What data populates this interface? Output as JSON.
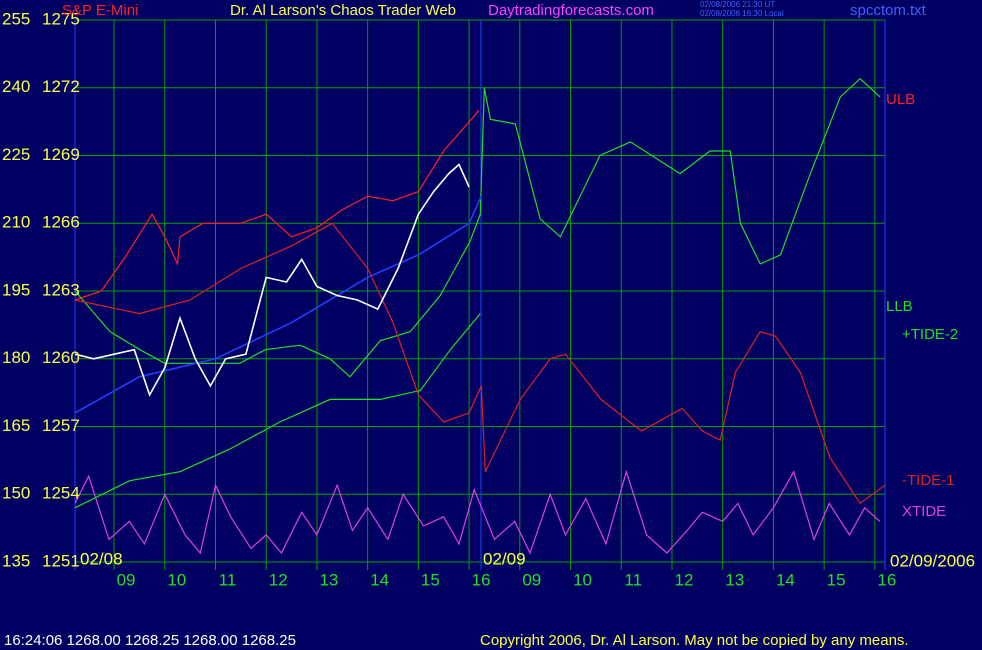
{
  "chart_data": {
    "type": "line",
    "title": "Dr. Al Larson's Chaos Trader Web",
    "instrument": "S&P E-Mini",
    "website": "Daytradingforecasts.com",
    "timestamps": [
      "02/08/2006 21:30 UT",
      "02/08/2006 16:30 Local"
    ],
    "file": "spcctom.txt",
    "date_labels": [
      "02/08",
      "02/09",
      "02/09/2006"
    ],
    "status": "16:24:06  1268.00 1268.25 1268.00 1268.25",
    "copyright": "Copyright 2006, Dr. Al Larson. May not be copied by any means.",
    "grid": true,
    "xlim": [
      8.23,
      24.2
    ],
    "xticks": [
      {
        "value": 9,
        "label": "09"
      },
      10,
      11,
      12,
      13,
      14,
      15,
      16,
      {
        "value": 17,
        "label": "09"
      },
      {
        "value": 18,
        "label": "10"
      },
      {
        "value": 19,
        "label": "11"
      },
      {
        "value": 20,
        "label": "12"
      },
      {
        "value": 21,
        "label": "13"
      },
      {
        "value": 22,
        "label": "14"
      },
      {
        "value": 23,
        "label": "15"
      },
      {
        "value": 24,
        "label": "16"
      }
    ],
    "ylim": [
      135,
      255
    ],
    "yticks": [
      135,
      150,
      165,
      180,
      195,
      210,
      225,
      240,
      255
    ],
    "y2lim": [
      1251,
      1275
    ],
    "y2ticks": [
      1251,
      1254,
      1257,
      1260,
      1263,
      1266,
      1269,
      1272,
      1275
    ],
    "series": [
      {
        "name": "ULB",
        "color": "#ff2020",
        "x": [
          8.23,
          8.75,
          9.25,
          9.75,
          10.0,
          10.25,
          10.3,
          10.75,
          11.5,
          12.0,
          12.5,
          13.0,
          13.5,
          14.0,
          14.5,
          15.0,
          15.5,
          16.2
        ],
        "values": [
          193,
          195,
          203,
          212,
          207,
          201,
          207,
          210,
          210,
          212,
          207,
          209,
          213,
          216,
          215,
          217,
          226,
          235
        ]
      },
      {
        "name": "LLB",
        "color": "#20e020",
        "x": [
          8.23,
          9.31,
          10.3,
          11.28,
          12.27,
          13.26,
          14.25,
          15.04,
          15.63,
          16.22
        ],
        "values": [
          147,
          153,
          155,
          160,
          166,
          171,
          171,
          173,
          182,
          190
        ]
      },
      {
        "name": "+TIDE-2",
        "color": "#20e020",
        "x": [
          8.23,
          8.92,
          9.51,
          10.0,
          10.7,
          11.48,
          11.98,
          12.67,
          13.26,
          13.65,
          14.25,
          14.84,
          15.43,
          16.02,
          16.22,
          16.3,
          16.42,
          16.91,
          17.4,
          17.8,
          18.58,
          19.18,
          20.16,
          20.75,
          21.15,
          21.35,
          21.74,
          22.14,
          22.73,
          23.32,
          23.71,
          24.1
        ],
        "values": [
          195,
          186,
          182,
          179,
          179,
          179,
          182,
          183,
          180,
          176,
          184,
          186,
          194,
          206,
          212,
          240,
          233,
          232,
          211,
          207,
          225,
          228,
          221,
          226,
          226,
          210,
          201,
          203,
          221,
          238,
          242,
          238
        ]
      },
      {
        "name": "-TIDE-1",
        "color": "#e02020",
        "x": [
          8.23,
          9.5,
          10.5,
          11.5,
          12.5,
          13.3,
          14.0,
          14.5,
          15.0,
          15.5,
          16.0,
          16.24,
          16.32,
          17.01,
          17.6,
          17.9,
          18.6,
          19.4,
          20.2,
          20.6,
          20.95,
          21.25,
          21.74,
          22.04,
          22.53,
          23.12,
          23.71,
          24.2
        ],
        "values": [
          193,
          190,
          193,
          200,
          205,
          210,
          200,
          188,
          172,
          166,
          168,
          174,
          155,
          171,
          180,
          181,
          171,
          164,
          169,
          164,
          162,
          177,
          186,
          185,
          177,
          158,
          148,
          152
        ]
      },
      {
        "name": "XTIDE",
        "color": "#e040e0",
        "x": [
          8.23,
          8.5,
          8.9,
          9.3,
          9.6,
          10.0,
          10.4,
          10.7,
          11.0,
          11.3,
          11.7,
          12.0,
          12.3,
          12.7,
          13.0,
          13.4,
          13.7,
          14.0,
          14.4,
          14.7,
          15.1,
          15.5,
          15.8,
          16.1,
          16.5,
          16.9,
          17.2,
          17.6,
          17.9,
          18.3,
          18.7,
          19.1,
          19.5,
          19.9,
          20.3,
          20.6,
          21.0,
          21.3,
          21.6,
          22.0,
          22.4,
          22.8,
          23.1,
          23.5,
          23.8,
          24.1
        ],
        "values": [
          148,
          154,
          140,
          144,
          139,
          150,
          141,
          137,
          152,
          145,
          138,
          141,
          137,
          146,
          141,
          152,
          142,
          147,
          140,
          150,
          143,
          145,
          139,
          151,
          140,
          144,
          137,
          150,
          141,
          149,
          139,
          155,
          141,
          137,
          142,
          146,
          144,
          148,
          141,
          147,
          155,
          140,
          148,
          141,
          147,
          144
        ]
      },
      {
        "color": "#2040ff",
        "x": [
          8.23,
          9.5,
          11.0,
          12.5,
          14.0,
          15.0,
          16.0,
          16.24
        ],
        "values": [
          168,
          176,
          180,
          188,
          198,
          203,
          210,
          216
        ]
      },
      {
        "color": "#ffffff",
        "x": [
          8.23,
          8.6,
          9.0,
          9.4,
          9.7,
          10.0,
          10.3,
          10.6,
          10.9,
          11.2,
          11.6,
          12.0,
          12.4,
          12.7,
          13.0,
          13.4,
          13.8,
          14.2,
          14.6,
          15.0,
          15.3,
          15.6,
          15.8,
          16.0
        ],
        "values": [
          181,
          180,
          181,
          182,
          172,
          178,
          189,
          180,
          174,
          180,
          181,
          198,
          197,
          202,
          196,
          194,
          193,
          191,
          200,
          212,
          217,
          221,
          223,
          218
        ]
      }
    ]
  }
}
